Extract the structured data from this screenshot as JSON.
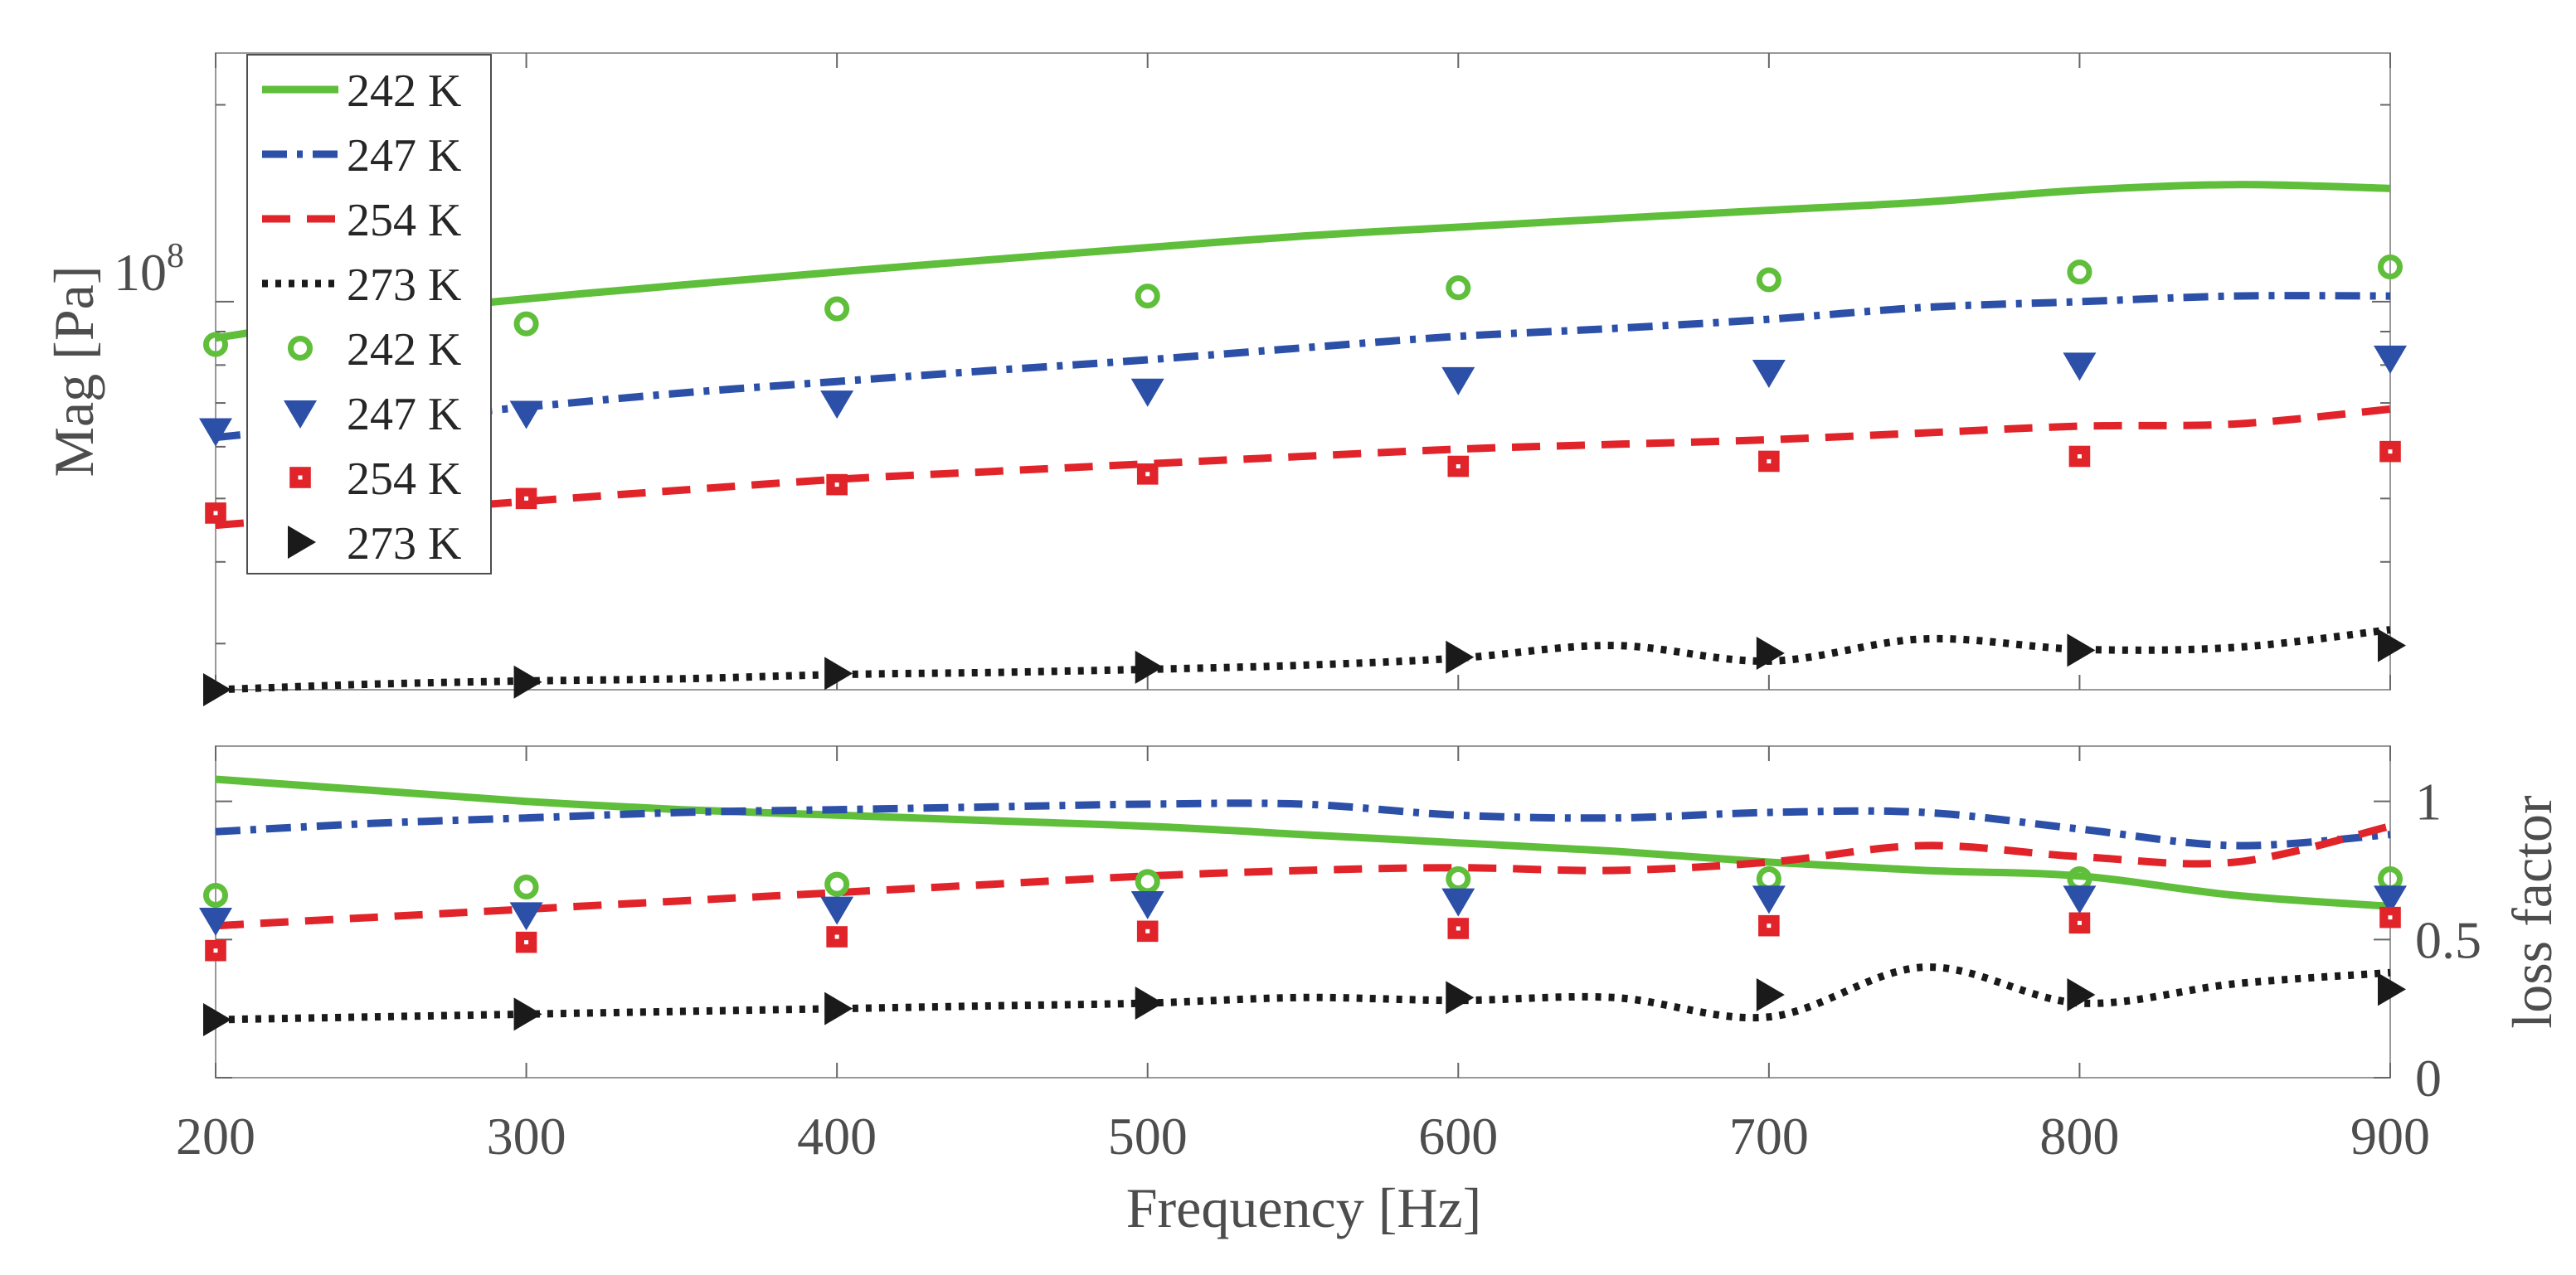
{
  "chart_data": [
    {
      "type": "line",
      "panel": "top",
      "yscale": "log",
      "ylabel": "Mag [Pa]",
      "xlim": [
        200,
        900
      ],
      "ylim": [
        25500000.0,
        240000000.0
      ],
      "y_tick_label_text": "10",
      "y_tick_label_exponent": "8",
      "x": [
        200,
        250,
        300,
        350,
        400,
        450,
        500,
        550,
        600,
        650,
        700,
        750,
        800,
        850,
        900
      ],
      "series": [
        {
          "name": "242 K",
          "style": "solid",
          "color": "#5fbe3a",
          "values": [
            88000000.0,
            95500000.0,
            101000000.0,
            106000000.0,
            111000000.0,
            116000000.0,
            121000000.0,
            126000000.0,
            130000000.0,
            134000000.0,
            138000000.0,
            142000000.0,
            148000000.0,
            151000000.0,
            149000000.0
          ]
        },
        {
          "name": "247 K",
          "style": "dashdot",
          "color": "#2c4fa8",
          "values": [
            62000000.0,
            65500000.0,
            69000000.0,
            72500000.0,
            75500000.0,
            78500000.0,
            81500000.0,
            85000000.0,
            88500000.0,
            91000000.0,
            94000000.0,
            98000000.0,
            100000000.0,
            102000000.0,
            102000000.0
          ]
        },
        {
          "name": "254 K",
          "style": "dashed",
          "color": "#e0242a",
          "values": [
            45500000.0,
            47500000.0,
            49500000.0,
            51500000.0,
            53500000.0,
            55000000.0,
            56500000.0,
            58000000.0,
            59500000.0,
            60500000.0,
            61500000.0,
            63000000.0,
            64500000.0,
            65000000.0,
            68500000.0
          ]
        },
        {
          "name": "273 K",
          "style": "dotted",
          "color": "#1a1a1a",
          "values": [
            25500000.0,
            26000000.0,
            26300000.0,
            26500000.0,
            26900000.0,
            27100000.0,
            27400000.0,
            27800000.0,
            28500000.0,
            29800000.0,
            28200000.0,
            30500000.0,
            29400000.0,
            29600000.0,
            31500000.0
          ]
        }
      ],
      "markers_x": [
        200,
        300,
        400,
        500,
        600,
        700,
        800,
        900
      ],
      "marker_series": [
        {
          "name": "242 K",
          "marker": "circle",
          "color": "#5fbe3a",
          "values": [
            86000000.0,
            92500000.0,
            97500000.0,
            102000000.0,
            105000000.0,
            108000000.0,
            111000000.0,
            113000000.0
          ]
        },
        {
          "name": "247 K",
          "marker": "triangle-down",
          "color": "#2c4fa8",
          "values": [
            63500000.0,
            67500000.0,
            70000000.0,
            73000000.0,
            76000000.0,
            78000000.0,
            80000000.0,
            82000000.0
          ]
        },
        {
          "name": "254 K",
          "marker": "square",
          "color": "#e0242a",
          "values": [
            47500000.0,
            50000000.0,
            52500000.0,
            54500000.0,
            56000000.0,
            57000000.0,
            58000000.0,
            59000000.0
          ]
        },
        {
          "name": "273 K",
          "marker": "triangle-right",
          "color": "#1a1a1a",
          "values": [
            25500000.0,
            26200000.0,
            27000000.0,
            27600000.0,
            28600000.0,
            29000000.0,
            29300000.0,
            29800000.0
          ]
        }
      ],
      "legend_position": "top-left",
      "legend": [
        "242 K",
        "247 K",
        "254 K",
        "273 K",
        "242 K",
        "247 K",
        "254 K",
        "273 K"
      ]
    },
    {
      "type": "line",
      "panel": "bottom",
      "xlabel": "Frequency [Hz]",
      "ylabel": "loss factor",
      "ylabel_side": "right",
      "xlim": [
        200,
        900
      ],
      "ylim": [
        0,
        1.2
      ],
      "xticks": [
        "200",
        "300",
        "400",
        "500",
        "600",
        "700",
        "800",
        "900"
      ],
      "yticks": [
        "0",
        "0.5",
        "1"
      ],
      "x": [
        200,
        250,
        300,
        350,
        400,
        450,
        500,
        550,
        600,
        650,
        700,
        750,
        800,
        850,
        900
      ],
      "series": [
        {
          "name": "242 K",
          "style": "solid",
          "color": "#5fbe3a",
          "values": [
            1.08,
            1.04,
            1.0,
            0.97,
            0.95,
            0.93,
            0.91,
            0.88,
            0.85,
            0.82,
            0.78,
            0.75,
            0.73,
            0.66,
            0.62
          ]
        },
        {
          "name": "247 K",
          "style": "dashdot",
          "color": "#2c4fa8",
          "values": [
            0.89,
            0.92,
            0.94,
            0.96,
            0.97,
            0.98,
            0.99,
            0.99,
            0.95,
            0.94,
            0.96,
            0.96,
            0.9,
            0.84,
            0.88
          ]
        },
        {
          "name": "254 K",
          "style": "dashed",
          "color": "#e0242a",
          "values": [
            0.55,
            0.58,
            0.61,
            0.64,
            0.67,
            0.7,
            0.73,
            0.75,
            0.76,
            0.75,
            0.78,
            0.84,
            0.8,
            0.78,
            0.91
          ]
        },
        {
          "name": "273 K",
          "style": "dotted",
          "color": "#1a1a1a",
          "values": [
            0.21,
            0.22,
            0.23,
            0.24,
            0.25,
            0.26,
            0.27,
            0.29,
            0.28,
            0.29,
            0.22,
            0.4,
            0.27,
            0.34,
            0.38
          ]
        }
      ],
      "markers_x": [
        200,
        300,
        400,
        500,
        600,
        700,
        800,
        900
      ],
      "marker_series": [
        {
          "name": "242 K",
          "marker": "circle",
          "color": "#5fbe3a",
          "values": [
            0.66,
            0.69,
            0.7,
            0.71,
            0.72,
            0.72,
            0.72,
            0.72
          ]
        },
        {
          "name": "247 K",
          "marker": "triangle-down",
          "color": "#2c4fa8",
          "values": [
            0.57,
            0.59,
            0.61,
            0.63,
            0.64,
            0.65,
            0.65,
            0.65
          ]
        },
        {
          "name": "254 K",
          "marker": "square",
          "color": "#e0242a",
          "values": [
            0.46,
            0.49,
            0.51,
            0.53,
            0.54,
            0.55,
            0.56,
            0.58
          ]
        },
        {
          "name": "273 K",
          "marker": "triangle-right",
          "color": "#1a1a1a",
          "values": [
            0.21,
            0.23,
            0.25,
            0.27,
            0.29,
            0.3,
            0.3,
            0.32
          ]
        }
      ]
    }
  ]
}
